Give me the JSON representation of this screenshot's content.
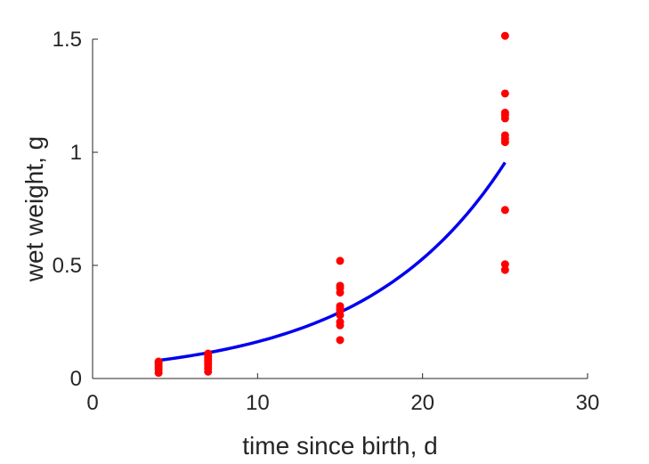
{
  "chart_data": {
    "type": "scatter",
    "xlabel": "time since birth, d",
    "ylabel": "wet weight, g",
    "xlim": [
      0,
      30
    ],
    "ylim": [
      0,
      1.5
    ],
    "xticks": [
      0,
      10,
      20,
      30
    ],
    "yticks": [
      0,
      0.5,
      1,
      1.5
    ],
    "xtick_labels": [
      "0",
      "10",
      "20",
      "30"
    ],
    "ytick_labels": [
      "0",
      "0.5",
      "1",
      "1.5"
    ],
    "grid": false,
    "points": {
      "color": "#ff0000",
      "x": [
        4,
        4,
        4,
        4,
        4,
        4,
        7,
        7,
        7,
        7,
        7,
        7,
        7,
        7,
        15,
        15,
        15,
        15,
        15,
        15,
        15,
        15,
        15,
        15,
        15,
        25,
        25,
        25,
        25,
        25,
        25,
        25,
        25,
        25,
        25,
        25
      ],
      "y": [
        0.025,
        0.04,
        0.05,
        0.06,
        0.07,
        0.075,
        0.03,
        0.045,
        0.06,
        0.07,
        0.08,
        0.09,
        0.1,
        0.11,
        0.17,
        0.235,
        0.25,
        0.28,
        0.3,
        0.31,
        0.32,
        0.38,
        0.4,
        0.41,
        0.52,
        0.48,
        0.505,
        0.745,
        1.045,
        1.06,
        1.075,
        1.15,
        1.165,
        1.175,
        1.26,
        1.515
      ]
    },
    "fit": {
      "color": "#0000ee",
      "type": "exponential",
      "x_range": [
        4,
        25
      ],
      "y_at_start": 0.08,
      "y_at_end": 0.955
    }
  }
}
